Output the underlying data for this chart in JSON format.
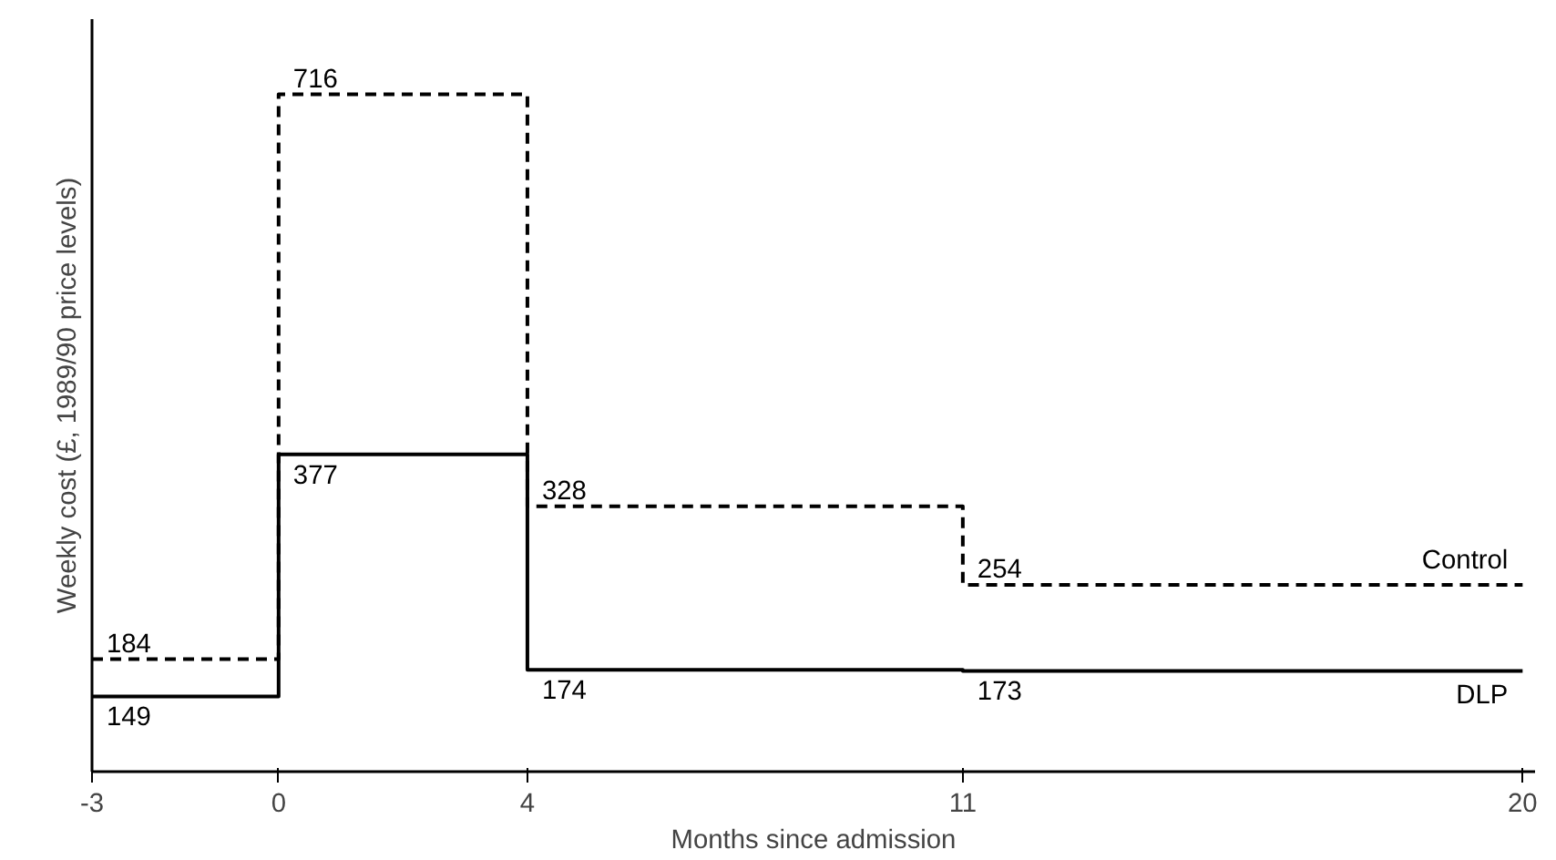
{
  "chart_data": {
    "type": "step",
    "xlabel": "Months since admission",
    "ylabel": "Weekly cost (£, 1989/90 price levels)",
    "x": [
      -3,
      0,
      4,
      11,
      20
    ],
    "series": [
      {
        "name": "Control",
        "color": "#000000",
        "line_style": "dashed",
        "values": [
          184,
          716,
          328,
          254,
          254
        ],
        "value_labels": [
          "184",
          "716",
          "328",
          "254",
          null
        ]
      },
      {
        "name": "DLP",
        "color": "#000000",
        "line_style": "solid",
        "values": [
          149,
          377,
          174,
          173,
          173
        ],
        "value_labels": [
          "149",
          "377",
          "174",
          "173",
          null
        ]
      }
    ],
    "xlim": [
      -3,
      20.2
    ],
    "xticks": [
      -3,
      0,
      4,
      11,
      20
    ],
    "tick_labels": "x",
    "grid": false,
    "legend": false
  }
}
